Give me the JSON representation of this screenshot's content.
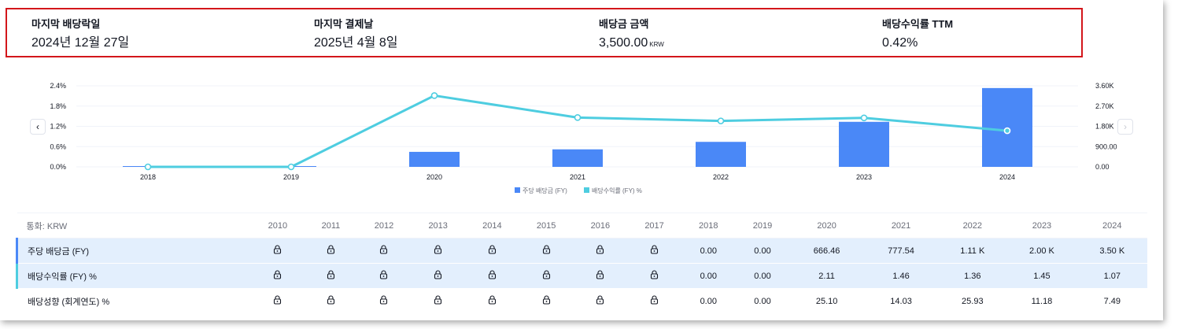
{
  "summary": {
    "ex_date": {
      "label": "마지막 배당락일",
      "value": "2024년 12월 27일"
    },
    "pay_date": {
      "label": "마지막 결제날",
      "value": "2025년 4월 8일"
    },
    "amount": {
      "label": "배당금 금액",
      "value": "3,500.00",
      "unit": "KRW"
    },
    "yield": {
      "label": "배당수익률 TTM",
      "value": "0.42%"
    }
  },
  "nav": {
    "prev_icon": "chevron-left-icon",
    "next_icon": "chevron-right-icon"
  },
  "chart_data": {
    "type": "bar",
    "categories": [
      "2018",
      "2019",
      "2020",
      "2021",
      "2022",
      "2023",
      "2024"
    ],
    "series": [
      {
        "name": "주당 배당금 (FY)",
        "kind": "bar",
        "axis": "right",
        "color": "#4a88f7",
        "values": [
          0,
          0,
          666.46,
          777.54,
          1110,
          2000,
          3500
        ]
      },
      {
        "name": "배당수익률 (FY) %",
        "kind": "line",
        "axis": "left",
        "color": "#4ecde0",
        "values": [
          0,
          0,
          2.11,
          1.46,
          1.36,
          1.45,
          1.07
        ]
      }
    ],
    "left_ticks": [
      "0.0%",
      "0.6%",
      "1.2%",
      "1.8%",
      "2.4%"
    ],
    "right_ticks": [
      "0.00",
      "900.00",
      "1.80K",
      "2.70K",
      "3.60K"
    ],
    "left_range": [
      0,
      2.4
    ],
    "right_range": [
      0,
      3600
    ],
    "legend_position": "bottom-center"
  },
  "table": {
    "currency_label": "통화: KRW",
    "years": [
      "2010",
      "2011",
      "2012",
      "2013",
      "2014",
      "2015",
      "2016",
      "2017",
      "2018",
      "2019",
      "2020",
      "2021",
      "2022",
      "2023",
      "2024"
    ],
    "rows": [
      {
        "label": "주당 배당금 (FY)",
        "locked": 8,
        "values": [
          "0.00",
          "0.00",
          "666.46",
          "777.54",
          "1.11 K",
          "2.00 K",
          "3.50 K"
        ]
      },
      {
        "label": "배당수익률 (FY) %",
        "locked": 8,
        "values": [
          "0.00",
          "0.00",
          "2.11",
          "1.46",
          "1.36",
          "1.45",
          "1.07"
        ]
      },
      {
        "label": "배당성향 (회계연도) %",
        "locked": 8,
        "values": [
          "0.00",
          "0.00",
          "25.10",
          "14.03",
          "25.93",
          "11.18",
          "7.49"
        ]
      }
    ],
    "lock_icon": "lock-icon"
  }
}
